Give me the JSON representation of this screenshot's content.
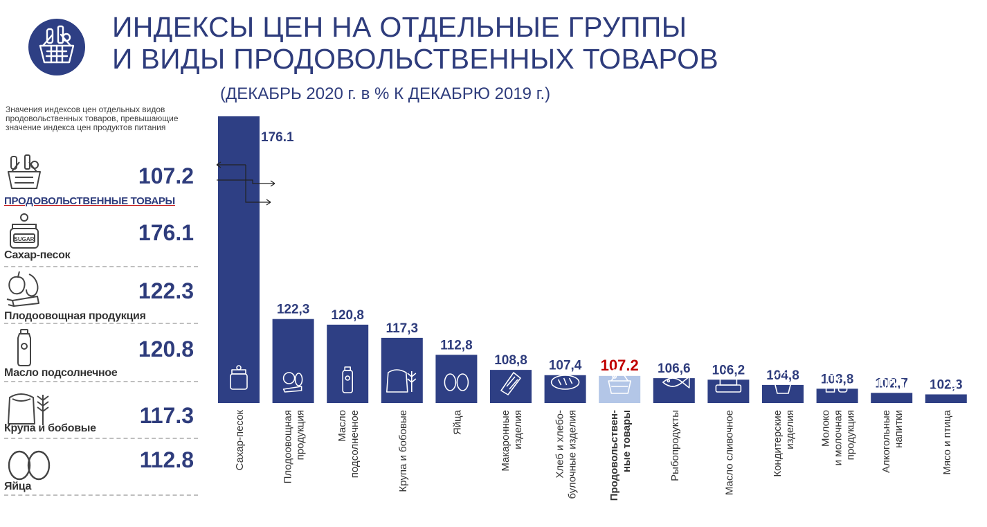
{
  "title_line1": "ИНДЕКСЫ ЦЕН НА ОТДЕЛЬНЫЕ ГРУППЫ",
  "title_line2": "И ВИДЫ ПРОДОВОЛЬСТВЕННЫХ ТОВАРОВ",
  "subtitle": "(ДЕКАБРЬ 2020 г. в % К ДЕКАБРЮ 2019 г.)",
  "sidebar": {
    "note": "Значения индексов цен отдельных видов продовольственных товаров, превышающие значение индекса цен продуктов питания",
    "items": [
      {
        "icon": "basket-icon",
        "value": "107.2",
        "label": "ПРОДОВОЛЬСТВЕННЫЕ ТОВАРЫ"
      },
      {
        "icon": "sugar-jar-icon",
        "value": "176.1",
        "label": "Сахар-песок"
      },
      {
        "icon": "fruit-vegetable-icon",
        "value": "122.3",
        "label": "Плодоовощная продукция"
      },
      {
        "icon": "oil-bottle-icon",
        "value": "120.8",
        "label": "Масло подсолнечное"
      },
      {
        "icon": "grain-sack-icon",
        "value": "117.3",
        "label": "Крупа и бобовые"
      },
      {
        "icon": "eggs-icon",
        "value": "112.8",
        "label": "Яйца"
      }
    ]
  },
  "colors": {
    "bar": "#2e3f84",
    "highlight_bar": "#b3c6e7",
    "highlight_label": "#c00000",
    "text": "#2e3c7c"
  },
  "chart_data": {
    "type": "bar",
    "title": "ИНДЕКСЫ ЦЕН НА ОТДЕЛЬНЫЕ ГРУППЫ И ВИДЫ ПРОДОВОЛЬСТВЕННЫХ ТОВАРОВ",
    "subtitle": "(ДЕКАБРЬ 2020 г. в % К ДЕКАБРЮ 2019 г.)",
    "baseline": 100,
    "categories": [
      [
        "Сахар-песок"
      ],
      [
        "Плодоовощная",
        "продукция"
      ],
      [
        "Масло",
        "подсолнечное"
      ],
      [
        "Крупа и бобовые"
      ],
      [
        "Яйца"
      ],
      [
        "Макаронные",
        "изделия"
      ],
      [
        "Хлеб и хлебо-",
        "булочные изделия"
      ],
      [
        "Продовольствен-",
        "ные товары"
      ],
      [
        "Рыбопродукты"
      ],
      [
        "Масло сливочное"
      ],
      [
        "Кондитерские",
        "изделия"
      ],
      [
        "Молоко",
        "и молочная",
        "продукция"
      ],
      [
        "Алкогольные",
        "напитки"
      ],
      [
        "Мясо и птица"
      ]
    ],
    "values": [
      176.1,
      122.3,
      120.8,
      117.3,
      112.8,
      108.8,
      107.4,
      107.2,
      106.6,
      106.2,
      104.8,
      103.8,
      102.7,
      102.3
    ],
    "value_labels": [
      "176.1",
      "122,3",
      "120,8",
      "117,3",
      "112,8",
      "108,8",
      "107,4",
      "107.2",
      "106,6",
      "106,2",
      "104,8",
      "103,8",
      "102,7",
      "102,3"
    ],
    "icons": [
      "sugar-jar-icon",
      "fruit-vegetable-icon",
      "oil-bottle-icon",
      "grain-sack-icon",
      "eggs-icon",
      "pasta-icon",
      "bread-icon",
      "basket-icon",
      "fish-icon",
      "butter-icon",
      "cupcake-icon",
      "milk-icon",
      "bottles-icon",
      "meat-icon"
    ],
    "highlight_index": 7
  }
}
